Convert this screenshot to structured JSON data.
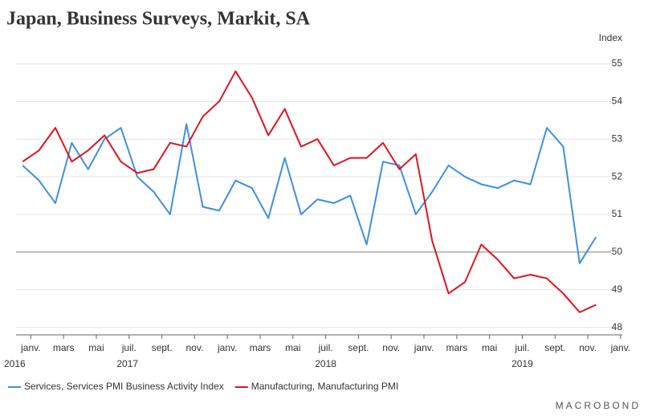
{
  "chart_data": {
    "type": "line",
    "title": "Japan, Business Surveys, Markit, SA",
    "y_axis_label": "Index",
    "brand": "MACROBOND",
    "xlim": [
      -0.4,
      36.9
    ],
    "xticks": [
      {
        "value": 0.5,
        "label": "janv."
      },
      {
        "value": 2.5,
        "label": "mars"
      },
      {
        "value": 4.5,
        "label": "mai"
      },
      {
        "value": 6.5,
        "label": "juil."
      },
      {
        "value": 8.5,
        "label": "sept."
      },
      {
        "value": 10.5,
        "label": "nov."
      },
      {
        "value": 12.5,
        "label": "janv."
      },
      {
        "value": 14.5,
        "label": "mars"
      },
      {
        "value": 16.5,
        "label": "mai"
      },
      {
        "value": 18.5,
        "label": "juil."
      },
      {
        "value": 20.5,
        "label": "sept."
      },
      {
        "value": 22.5,
        "label": "nov."
      },
      {
        "value": 24.5,
        "label": "janv."
      },
      {
        "value": 26.5,
        "label": "mars"
      },
      {
        "value": 28.5,
        "label": "mai"
      },
      {
        "value": 30.5,
        "label": "juil."
      },
      {
        "value": 32.5,
        "label": "sept."
      },
      {
        "value": 34.5,
        "label": "nov."
      },
      {
        "value": 36.5,
        "label": "janv."
      }
    ],
    "year_labels": [
      {
        "value": -0.4,
        "label": "2016"
      },
      {
        "value": 6.4,
        "label": "2017"
      },
      {
        "value": 18.5,
        "label": "2018"
      },
      {
        "value": 30.5,
        "label": "2019"
      }
    ],
    "ylim": [
      47.8,
      55.5
    ],
    "yticks": [
      48,
      49,
      50,
      51,
      52,
      53,
      54,
      55
    ],
    "reference_line": 50,
    "grid": true,
    "series": [
      {
        "name": "Services, Services PMI Business Activity Index",
        "color": "#3f8fe0",
        "values": [
          52.3,
          51.9,
          51.3,
          52.9,
          52.2,
          53.0,
          53.3,
          52.0,
          51.6,
          51.0,
          53.4,
          51.2,
          51.1,
          51.9,
          51.7,
          50.9,
          52.5,
          51.0,
          51.4,
          51.3,
          51.5,
          50.2,
          52.4,
          52.3,
          51.0,
          51.6,
          52.3,
          52.0,
          51.8,
          51.7,
          51.9,
          51.8,
          53.3,
          52.8,
          49.7,
          50.4
        ]
      },
      {
        "name": "Manufacturing, Manufacturing PMI",
        "color": "#e0141e",
        "values": [
          52.4,
          52.7,
          53.3,
          52.4,
          52.7,
          53.1,
          52.4,
          52.1,
          52.2,
          52.9,
          52.8,
          53.6,
          54.0,
          54.8,
          54.1,
          53.1,
          53.8,
          52.8,
          53.0,
          52.3,
          52.5,
          52.5,
          52.9,
          52.2,
          52.6,
          50.3,
          48.9,
          49.2,
          50.2,
          49.8,
          49.3,
          49.4,
          49.3,
          48.9,
          48.4,
          48.6
        ]
      }
    ]
  }
}
